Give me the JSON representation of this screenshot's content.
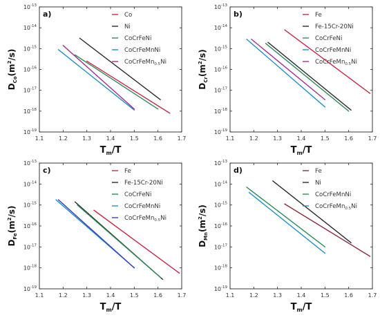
{
  "chart_data": [
    {
      "type": "line",
      "panel_label": "a)",
      "xlabel": {
        "main": "T",
        "sub": "m",
        "rest": "/T"
      },
      "ylabel": {
        "main": "D",
        "sub": "Co",
        "rest": "(m",
        "sup": "2",
        "end": "/s)"
      },
      "xlim": [
        1.1,
        1.7
      ],
      "xticks": [
        "1.1",
        "1.2",
        "1.3",
        "1.4",
        "1.5",
        "1.6",
        "1.7"
      ],
      "yscale": "log",
      "ylim_exp": [
        -19,
        -13
      ],
      "yticks": [
        "10-13",
        "10-14",
        "10-15",
        "10-16",
        "10-17",
        "10-18",
        "10-19"
      ],
      "legend_position": "top-right",
      "series": [
        {
          "name": "Co",
          "color": "#c62a47",
          "x": [
            1.3,
            1.65
          ],
          "logy": [
            -15.6,
            -18.1
          ]
        },
        {
          "name": "Ni",
          "color": "#2b2b2b",
          "x": [
            1.27,
            1.61
          ],
          "logy": [
            -14.5,
            -17.45
          ]
        },
        {
          "name": "CoCrFeNi",
          "color": "#2e8b57",
          "x": [
            1.25,
            1.6
          ],
          "logy": [
            -15.3,
            -17.9
          ]
        },
        {
          "name": "CoCrFeMnNi",
          "color": "#1f90c8",
          "x": [
            1.18,
            1.5
          ],
          "logy": [
            -15.05,
            -17.95
          ]
        },
        {
          "name": "CoCrFeMn",
          "name_sub": "0.5",
          "name_end": "Ni",
          "color": "#a0308f",
          "x": [
            1.2,
            1.5
          ],
          "logy": [
            -14.85,
            -17.9
          ]
        }
      ]
    },
    {
      "type": "line",
      "panel_label": "b)",
      "xlabel": {
        "main": "T",
        "sub": "m",
        "rest": "/T"
      },
      "ylabel": {
        "main": "D",
        "sub": "Cr",
        "rest": "(m",
        "sup": "2",
        "end": "/s)"
      },
      "xlim": [
        1.1,
        1.7
      ],
      "xticks": [
        "1.1",
        "1.2",
        "1.3",
        "1.4",
        "1.5",
        "1.6",
        "1.7"
      ],
      "yscale": "log",
      "ylim_exp": [
        -19,
        -13
      ],
      "yticks": [
        "10-13",
        "10-14",
        "10-15",
        "10-16",
        "10-17",
        "10-18",
        "10-19"
      ],
      "legend_position": "top-right",
      "series": [
        {
          "name": "Fe",
          "color": "#c62a47",
          "x": [
            1.33,
            1.69
          ],
          "logy": [
            -14.1,
            -17.15
          ]
        },
        {
          "name": "Fe-15Cr-20Ni",
          "color": "#2b2b2b",
          "x": [
            1.26,
            1.61
          ],
          "logy": [
            -14.7,
            -17.95
          ]
        },
        {
          "name": "CoCrFeNi",
          "color": "#2e8b57",
          "x": [
            1.25,
            1.6
          ],
          "logy": [
            -14.75,
            -18.0
          ]
        },
        {
          "name": "CoCrFeMnNi",
          "color": "#1f90c8",
          "x": [
            1.17,
            1.5
          ],
          "logy": [
            -14.55,
            -17.8
          ]
        },
        {
          "name": "CoCrFeMn",
          "name_sub": "0.5",
          "name_end": "Ni",
          "color": "#a0308f",
          "x": [
            1.19,
            1.5
          ],
          "logy": [
            -14.55,
            -17.45
          ]
        }
      ]
    },
    {
      "type": "line",
      "panel_label": "c)",
      "xlabel": {
        "main": "T",
        "sub": "m",
        "rest": "/T"
      },
      "ylabel": {
        "main": "D",
        "sub": "Fe",
        "rest": "(m",
        "sup": "2",
        "end": "/s)"
      },
      "xlim": [
        1.1,
        1.7
      ],
      "xticks": [
        "1.1",
        "1.2",
        "1.3",
        "1.4",
        "1.5",
        "1.6",
        "1.7"
      ],
      "yscale": "log",
      "ylim_exp": [
        -19,
        -13
      ],
      "yticks": [
        "10-13",
        "10-14",
        "10-15",
        "10-16",
        "10-17",
        "10-18",
        "10-19"
      ],
      "legend_position": "top-right",
      "series": [
        {
          "name": "Fe",
          "color": "#c62a47",
          "x": [
            1.33,
            1.69
          ],
          "logy": [
            -15.25,
            -18.25
          ]
        },
        {
          "name": "Fe-15Cr-20Ni",
          "color": "#2b2b2b",
          "x": [
            1.25,
            1.62
          ],
          "logy": [
            -14.85,
            -18.55
          ]
        },
        {
          "name": "CoCrFeNi",
          "color": "#2e8b57",
          "x": [
            1.26,
            1.61
          ],
          "logy": [
            -15.0,
            -18.45
          ]
        },
        {
          "name": "CoCrFeMnNi",
          "color": "#1f90c8",
          "x": [
            1.17,
            1.5
          ],
          "logy": [
            -14.75,
            -18.0
          ]
        },
        {
          "name": "CoCrFeMn",
          "name_sub": "0.5",
          "name_end": "Ni",
          "color": "#3a40b8",
          "x": [
            1.18,
            1.5
          ],
          "logy": [
            -14.75,
            -18.0
          ]
        }
      ]
    },
    {
      "type": "line",
      "panel_label": "d)",
      "xlabel": {
        "main": "T",
        "sub": "m",
        "rest": "/T"
      },
      "ylabel": {
        "main": "D",
        "sub": "Mn",
        "rest": "(m",
        "sup": "2",
        "end": "/s)"
      },
      "xlim": [
        1.1,
        1.7
      ],
      "xticks": [
        "1.1",
        "1.2",
        "1.3",
        "1.4",
        "1.5",
        "1.6",
        "1.7"
      ],
      "yscale": "log",
      "ylim_exp": [
        -19,
        -13
      ],
      "yticks": [
        "10-13",
        "10-14",
        "10-15",
        "10-16",
        "10-17",
        "10-18",
        "10-19"
      ],
      "legend_position": "top-right",
      "series": [
        {
          "name": "Fe",
          "color": "#8b2a3a",
          "x": [
            1.33,
            1.69
          ],
          "logy": [
            -14.95,
            -17.45
          ]
        },
        {
          "name": "Ni",
          "color": "#2b2b2b",
          "x": [
            1.28,
            1.61
          ],
          "logy": [
            -13.85,
            -16.8
          ]
        },
        {
          "name": "CoCrFeMnNi",
          "color": "#2e8b57",
          "x": [
            1.17,
            1.5
          ],
          "logy": [
            -14.15,
            -17.0
          ]
        },
        {
          "name": "CoCrFeMn",
          "name_sub": "0.5",
          "name_end": "Ni",
          "color": "#1f90c8",
          "x": [
            1.18,
            1.5
          ],
          "logy": [
            -14.4,
            -17.3
          ]
        }
      ]
    }
  ]
}
